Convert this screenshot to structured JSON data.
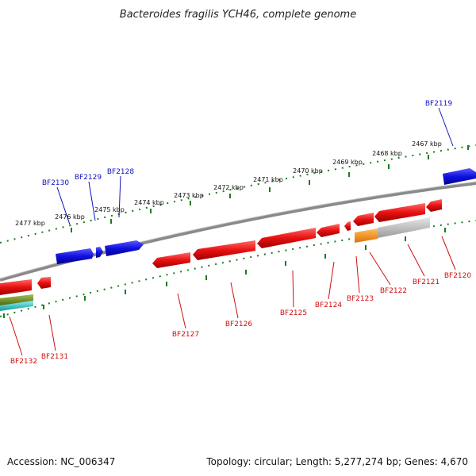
{
  "title": "Bacteroides fragilis YCH46, complete genome",
  "footer": {
    "accession": "Accession: NC_006347",
    "summary": "Topology: circular; Length: 5,277,274 bp; Genes: 4,670"
  },
  "scale_labels": [
    "2477 kbp",
    "2476 kbp",
    "2475 kbp",
    "2474 kbp",
    "2473 kbp",
    "2472 kbp",
    "2471 kbp",
    "2470 kbp",
    "2469 kbp",
    "2468 kbp",
    "2467 kbp"
  ],
  "genes_forward": [
    "BF2130",
    "BF2129",
    "BF2128",
    "BF2119"
  ],
  "genes_reverse": [
    "BF2132",
    "BF2131",
    "BF2127",
    "BF2126",
    "BF2125",
    "BF2124",
    "BF2123",
    "BF2122",
    "BF2121",
    "BF2120"
  ],
  "colors": {
    "forward_gene": "#1010e0",
    "reverse_gene": "#e81010",
    "orange_feature": "#ff8c00",
    "gray_feature": "#b8b8b8",
    "olive_feature": "#6b8e23",
    "cyan_feature": "#20c8c8",
    "tick": "#1e7b1e",
    "backbone": "#808080"
  }
}
